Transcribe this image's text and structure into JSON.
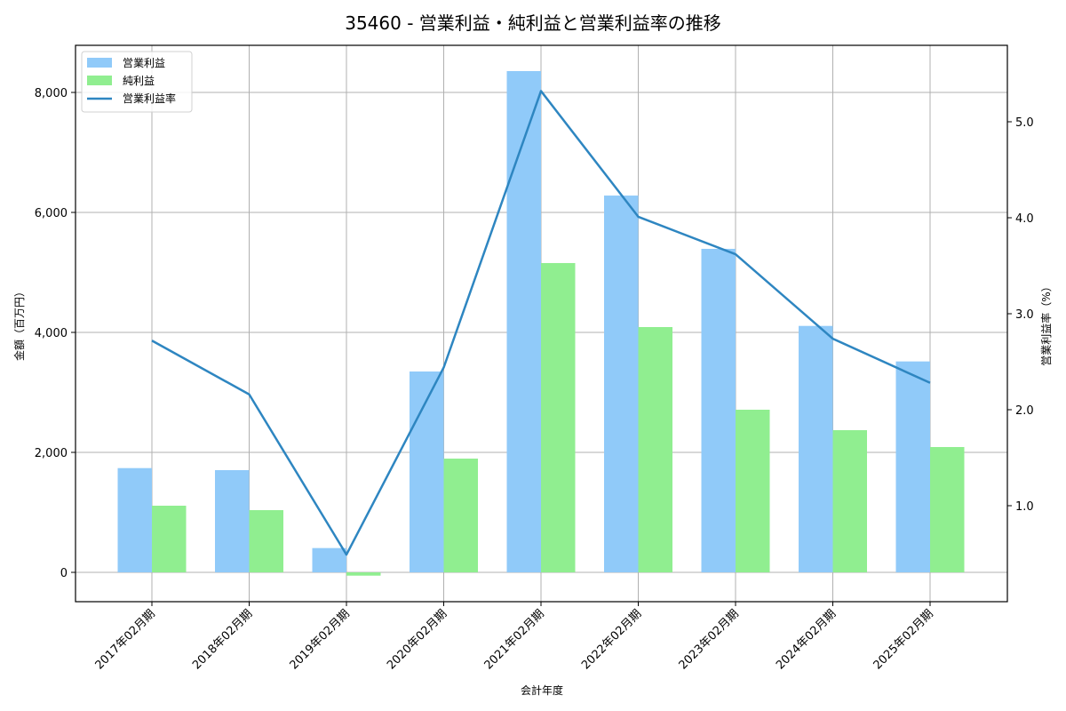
{
  "chart_data": {
    "type": "bar",
    "title": "35460 - 営業利益・純利益と営業利益率の推移",
    "xlabel": "会計年度",
    "ylabel": "金額（百万円）",
    "y2label": "営業利益率（%）",
    "categories": [
      "2017年02月期",
      "2018年02月期",
      "2019年02月期",
      "2020年02月期",
      "2021年02月期",
      "2022年02月期",
      "2023年02月期",
      "2024年02月期",
      "2025年02月期"
    ],
    "series": [
      {
        "name": "営業利益",
        "type": "bar",
        "axis": "left",
        "color": "#90caf9",
        "values": [
          1738,
          1704,
          405,
          3348,
          8356,
          6281,
          5393,
          4108,
          3516
        ]
      },
      {
        "name": "純利益",
        "type": "bar",
        "axis": "left",
        "color": "#90ee90",
        "values": [
          1111,
          1037,
          -55,
          1896,
          5156,
          4089,
          2711,
          2370,
          2089
        ]
      },
      {
        "name": "営業利益率",
        "type": "line",
        "axis": "right",
        "color": "#2e86c1",
        "values": [
          2.72,
          2.16,
          0.49,
          2.44,
          5.32,
          4.01,
          3.62,
          2.74,
          2.28
        ]
      }
    ],
    "ylim": [
      -500,
      8800
    ],
    "y2lim": [
      0.19,
      5.78
    ],
    "yticks": [
      0,
      2000,
      4000,
      6000,
      8000
    ],
    "yticklabels": [
      "0",
      "2,000",
      "4,000",
      "6,000",
      "8,000"
    ],
    "y2ticks": [
      1.0,
      2.0,
      3.0,
      4.0,
      5.0
    ],
    "y2ticklabels": [
      "1.0",
      "2.0",
      "3.0",
      "4.0",
      "5.0"
    ],
    "grid": true,
    "legend_position": "upper left"
  }
}
